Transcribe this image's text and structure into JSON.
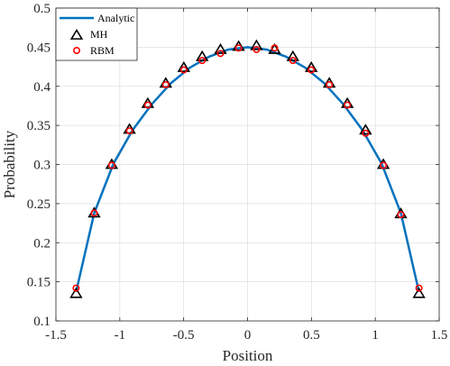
{
  "chart_data": {
    "type": "line",
    "xlabel": "Position",
    "ylabel": "Probability",
    "xlim": [
      -1.5,
      1.5
    ],
    "ylim": [
      0.1,
      0.5
    ],
    "xticks": [
      -1.5,
      -1,
      -0.5,
      0,
      0.5,
      1,
      1.5
    ],
    "xtick_labels": [
      "-1.5",
      "-1",
      "-0.5",
      "0",
      "0.5",
      "1",
      "1.5"
    ],
    "yticks": [
      0.1,
      0.15,
      0.2,
      0.25,
      0.3,
      0.35,
      0.4,
      0.45,
      0.5
    ],
    "ytick_labels": [
      "0.1",
      "0.15",
      "0.2",
      "0.25",
      "0.3",
      "0.35",
      "0.4",
      "0.45",
      "0.5"
    ],
    "grid": true,
    "legend_position": "top-left",
    "series": [
      {
        "name": "Analytic",
        "style": "line",
        "color": "#0072BD",
        "x": [
          -1.342,
          -1.2,
          -1.05,
          -0.9,
          -0.75,
          -0.6,
          -0.45,
          -0.3,
          -0.15,
          0,
          0.15,
          0.3,
          0.45,
          0.6,
          0.75,
          0.9,
          1.05,
          1.2,
          1.342
        ],
        "y": [
          0.137,
          0.238,
          0.301,
          0.344,
          0.377,
          0.404,
          0.424,
          0.438,
          0.447,
          0.45,
          0.447,
          0.438,
          0.424,
          0.404,
          0.377,
          0.344,
          0.301,
          0.238,
          0.137
        ]
      },
      {
        "name": "MH",
        "style": "triangle",
        "color": "#000000",
        "x": [
          -1.342,
          -1.2,
          -1.063,
          -0.924,
          -0.781,
          -0.64,
          -0.499,
          -0.355,
          -0.212,
          -0.07,
          0.07,
          0.212,
          0.355,
          0.499,
          0.64,
          0.781,
          0.924,
          1.063,
          1.2,
          1.342
        ],
        "y": [
          0.135,
          0.238,
          0.3,
          0.345,
          0.378,
          0.404,
          0.424,
          0.438,
          0.447,
          0.451,
          0.452,
          0.447,
          0.438,
          0.424,
          0.404,
          0.378,
          0.344,
          0.3,
          0.237,
          0.135
        ]
      },
      {
        "name": "RBM",
        "style": "circle",
        "color": "#FF0000",
        "x": [
          -1.342,
          -1.2,
          -1.063,
          -0.924,
          -0.781,
          -0.64,
          -0.499,
          -0.355,
          -0.212,
          -0.07,
          0.07,
          0.212,
          0.355,
          0.499,
          0.64,
          0.781,
          0.924,
          1.063,
          1.2,
          1.342
        ],
        "y": [
          0.142,
          0.238,
          0.299,
          0.343,
          0.376,
          0.402,
          0.421,
          0.433,
          0.442,
          0.449,
          0.447,
          0.449,
          0.433,
          0.421,
          0.402,
          0.376,
          0.34,
          0.299,
          0.236,
          0.142
        ]
      }
    ]
  }
}
